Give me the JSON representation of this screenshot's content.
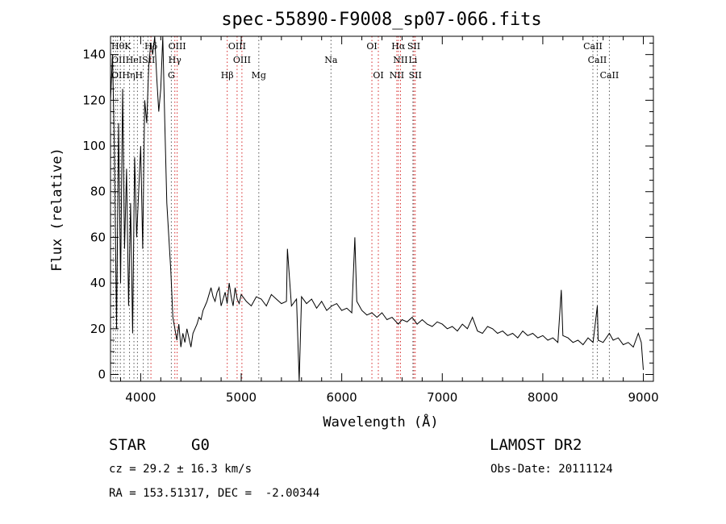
{
  "chart_data": {
    "type": "line",
    "title": "spec-55890-F9008_sp07-066.fits",
    "xlabel": "Wavelength (Å)",
    "ylabel": "Flux (relative)",
    "xlim": [
      3700,
      9100
    ],
    "ylim": [
      -3,
      148
    ],
    "xticks": [
      4000,
      5000,
      6000,
      7000,
      8000,
      9000
    ],
    "yticks": [
      0,
      20,
      40,
      60,
      80,
      100,
      120,
      140
    ],
    "grid": false,
    "series": [
      {
        "color": "#000000",
        "x": [
          3700,
          3720,
          3740,
          3760,
          3780,
          3800,
          3820,
          3840,
          3860,
          3880,
          3900,
          3920,
          3940,
          3960,
          3980,
          4000,
          4020,
          4040,
          4060,
          4080,
          4100,
          4120,
          4140,
          4160,
          4180,
          4200,
          4220,
          4240,
          4260,
          4280,
          4300,
          4320,
          4340,
          4360,
          4380,
          4400,
          4420,
          4440,
          4460,
          4480,
          4500,
          4520,
          4540,
          4560,
          4580,
          4600,
          4620,
          4640,
          4660,
          4680,
          4700,
          4720,
          4740,
          4760,
          4780,
          4800,
          4820,
          4840,
          4860,
          4880,
          4900,
          4920,
          4940,
          4960,
          4980,
          5000,
          5050,
          5100,
          5150,
          5200,
          5250,
          5300,
          5350,
          5400,
          5450,
          5460,
          5500,
          5550,
          5577,
          5600,
          5650,
          5700,
          5750,
          5800,
          5850,
          5900,
          5950,
          6000,
          6050,
          6100,
          6130,
          6150,
          6200,
          6250,
          6300,
          6350,
          6400,
          6450,
          6500,
          6563,
          6600,
          6650,
          6700,
          6750,
          6800,
          6850,
          6900,
          6950,
          7000,
          7050,
          7100,
          7150,
          7200,
          7250,
          7300,
          7350,
          7400,
          7450,
          7500,
          7550,
          7600,
          7650,
          7700,
          7750,
          7800,
          7850,
          7900,
          7950,
          8000,
          8050,
          8100,
          8150,
          8184,
          8200,
          8250,
          8300,
          8350,
          8400,
          8450,
          8500,
          8542,
          8550,
          8600,
          8662,
          8700,
          8750,
          8800,
          8850,
          8900,
          8950,
          8980,
          9000
        ],
        "y": [
          120,
          140,
          95,
          20,
          110,
          40,
          125,
          55,
          90,
          30,
          75,
          18,
          95,
          60,
          80,
          100,
          55,
          120,
          110,
          135,
          145,
          140,
          148,
          130,
          115,
          125,
          148,
          110,
          75,
          60,
          45,
          25,
          20,
          15,
          22,
          12,
          18,
          14,
          20,
          16,
          12,
          18,
          20,
          22,
          25,
          24,
          28,
          30,
          32,
          35,
          38,
          34,
          32,
          36,
          38,
          30,
          33,
          36,
          31,
          40,
          34,
          30,
          38,
          33,
          31,
          35,
          32,
          30,
          34,
          33,
          30,
          35,
          33,
          31,
          32,
          55,
          30,
          33,
          -3,
          34,
          31,
          33,
          29,
          32,
          28,
          30,
          31,
          28,
          29,
          27,
          60,
          32,
          28,
          26,
          27,
          25,
          27,
          24,
          25,
          22,
          24,
          23,
          25,
          22,
          24,
          22,
          21,
          23,
          22,
          20,
          21,
          19,
          22,
          20,
          25,
          19,
          18,
          21,
          20,
          18,
          19,
          17,
          18,
          16,
          19,
          17,
          18,
          16,
          17,
          15,
          16,
          14,
          37,
          17,
          16,
          14,
          15,
          13,
          16,
          14,
          30,
          15,
          14,
          18,
          15,
          16,
          13,
          14,
          12,
          18,
          14,
          2
        ]
      }
    ],
    "annotations": [
      {
        "label": "Hδ",
        "x": 4102,
        "row": 0
      },
      {
        "label": "OIII",
        "x": 4363,
        "row": 0
      },
      {
        "label": "OIII",
        "x": 4959,
        "row": 0
      },
      {
        "label": "OI",
        "x": 6300,
        "row": 0
      },
      {
        "label": "Hα",
        "x": 6563,
        "row": 0
      },
      {
        "label": "SII",
        "x": 6717,
        "row": 0
      },
      {
        "label": "CaII",
        "x": 8498,
        "row": 0
      },
      {
        "label": "Hγ",
        "x": 4340,
        "row": 1
      },
      {
        "label": "OIII",
        "x": 5007,
        "row": 1
      },
      {
        "label": "Na",
        "x": 5893,
        "row": 1
      },
      {
        "label": "NII",
        "x": 6584,
        "row": 1
      },
      {
        "label": "Li",
        "x": 6708,
        "row": 1
      },
      {
        "label": "CaII",
        "x": 8542,
        "row": 1
      },
      {
        "label": "G",
        "x": 4305,
        "row": 2
      },
      {
        "label": "Hβ",
        "x": 4861,
        "row": 2
      },
      {
        "label": "Mg",
        "x": 5175,
        "row": 2
      },
      {
        "label": "OI",
        "x": 6364,
        "row": 2
      },
      {
        "label": "NII",
        "x": 6548,
        "row": 2
      },
      {
        "label": "SII",
        "x": 6731,
        "row": 2
      },
      {
        "label": "CaII",
        "x": 8662,
        "row": 2
      }
    ],
    "left_cluster_labels": {
      "row0": "HθK",
      "row1": "OIIHeISII",
      "row2": "OIHηH"
    },
    "line_colors": {
      "emission": "#d62728",
      "absorption": "#555555"
    }
  },
  "info": {
    "class": "STAR",
    "subclass": "G0",
    "survey": "LAMOST DR2",
    "cz": "cz = 29.2 ± 16.3 km/s",
    "obs_date": "Obs-Date: 20111124",
    "radec": "RA = 153.51317, DEC =  -2.00344"
  }
}
